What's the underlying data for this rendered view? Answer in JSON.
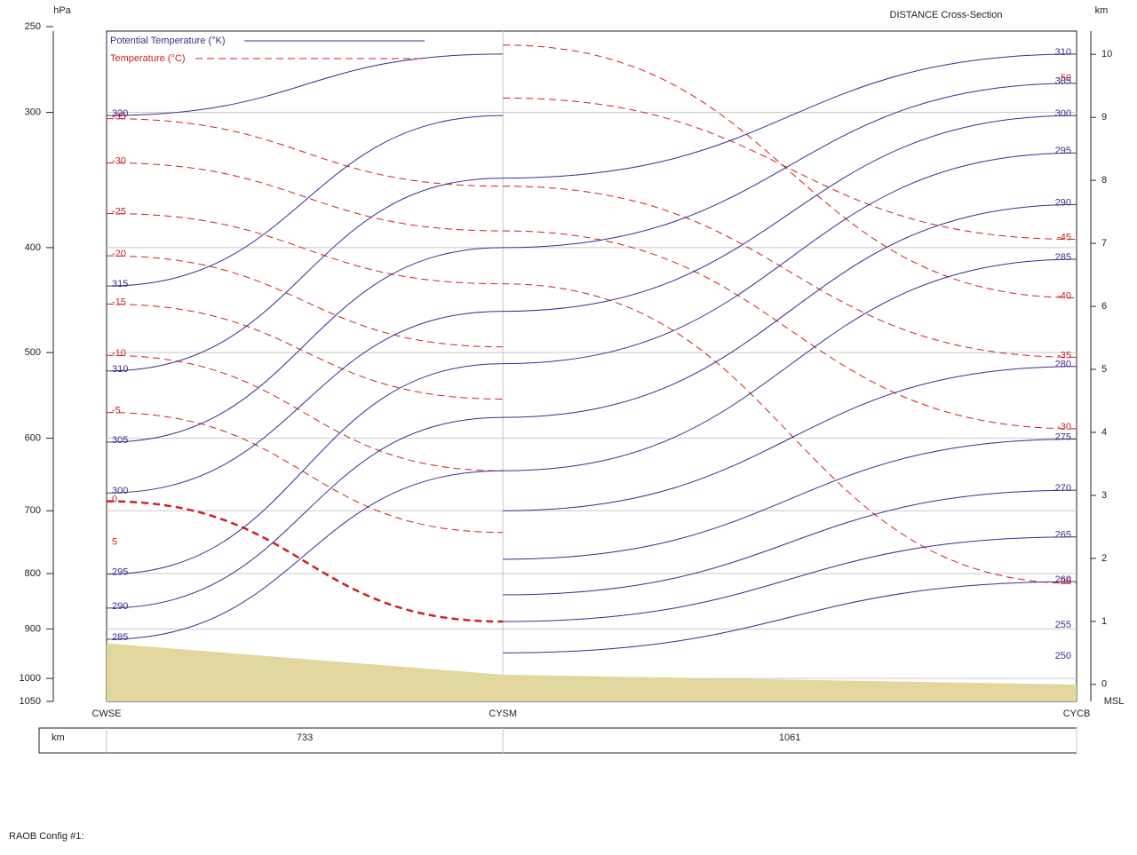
{
  "chart_data": {
    "type": "cross_section",
    "title": "DISTANCE Cross-Section",
    "y_label": "hPa",
    "y2_label": "km",
    "y2_bottom_label": "MSL",
    "log_y": true,
    "ylim": [
      1050,
      250
    ],
    "yticks": [
      250,
      300,
      400,
      500,
      600,
      700,
      800,
      900,
      1000,
      1050
    ],
    "y2lim": [
      -0.27,
      10.44
    ],
    "y2ticks": [
      0,
      1,
      2,
      3,
      4,
      5,
      6,
      7,
      8,
      9,
      10
    ],
    "grid": true,
    "stations": [
      "CWSE",
      "CYSM",
      "CYCB"
    ],
    "distance_label": "km",
    "distances": [
      733,
      1061
    ],
    "surface_pressure": [
      928,
      992,
      1013
    ],
    "terrain_color": "#e3d7a0",
    "legend": [
      {
        "name": "Potential Temperature (°K)",
        "color": "#3b2c8c"
      },
      {
        "name": "Temperature (°C)",
        "color": "#cc2222"
      }
    ],
    "isentropes": [
      {
        "value": 320,
        "pressure": [
          302,
          265,
          null
        ]
      },
      {
        "value": 315,
        "pressure": [
          434,
          302,
          null
        ]
      },
      {
        "value": 310,
        "pressure": [
          520,
          345,
          265
        ]
      },
      {
        "value": 305,
        "pressure": [
          605,
          400,
          282
        ]
      },
      {
        "value": 300,
        "pressure": [
          674,
          458,
          302
        ]
      },
      {
        "value": 295,
        "pressure": [
          801,
          512,
          327
        ]
      },
      {
        "value": 290,
        "pressure": [
          861,
          574,
          365
        ]
      },
      {
        "value": 285,
        "pressure": [
          920,
          643,
          410
        ]
      },
      {
        "value": 280,
        "pressure": [
          null,
          700,
          515
        ]
      },
      {
        "value": 275,
        "pressure": [
          null,
          776,
          601
        ]
      },
      {
        "value": 270,
        "pressure": [
          null,
          837,
          670
        ]
      },
      {
        "value": 265,
        "pressure": [
          null,
          886,
          740
        ]
      },
      {
        "value": 260,
        "pressure": [
          null,
          947,
          814
        ]
      },
      {
        "value": 255,
        "pressure": [
          null,
          null,
          896
        ]
      },
      {
        "value": 250,
        "pressure": [
          null,
          null,
          957
        ]
      }
    ],
    "isotherms": [
      {
        "value": -50,
        "pressure": [
          null,
          null,
          280
        ]
      },
      {
        "value": -45,
        "pressure": [
          null,
          291,
          393
        ]
      },
      {
        "value": -40,
        "pressure": [
          null,
          260,
          445
        ]
      },
      {
        "value": -35,
        "pressure": [
          304,
          351,
          505
        ]
      },
      {
        "value": -30,
        "pressure": [
          334,
          386,
          588
        ]
      },
      {
        "value": -25,
        "pressure": [
          372,
          432,
          817
        ]
      },
      {
        "value": -20,
        "pressure": [
          407,
          494,
          null
        ]
      },
      {
        "value": -15,
        "pressure": [
          451,
          552,
          null
        ]
      },
      {
        "value": -10,
        "pressure": [
          503,
          643,
          null
        ]
      },
      {
        "value": -5,
        "pressure": [
          568,
          733,
          null
        ]
      },
      {
        "value": 0,
        "pressure": [
          686,
          886,
          null
        ]
      },
      {
        "value": 5,
        "pressure": [
          751,
          null,
          null
        ]
      }
    ],
    "footer": "RAOB Config #1:"
  }
}
